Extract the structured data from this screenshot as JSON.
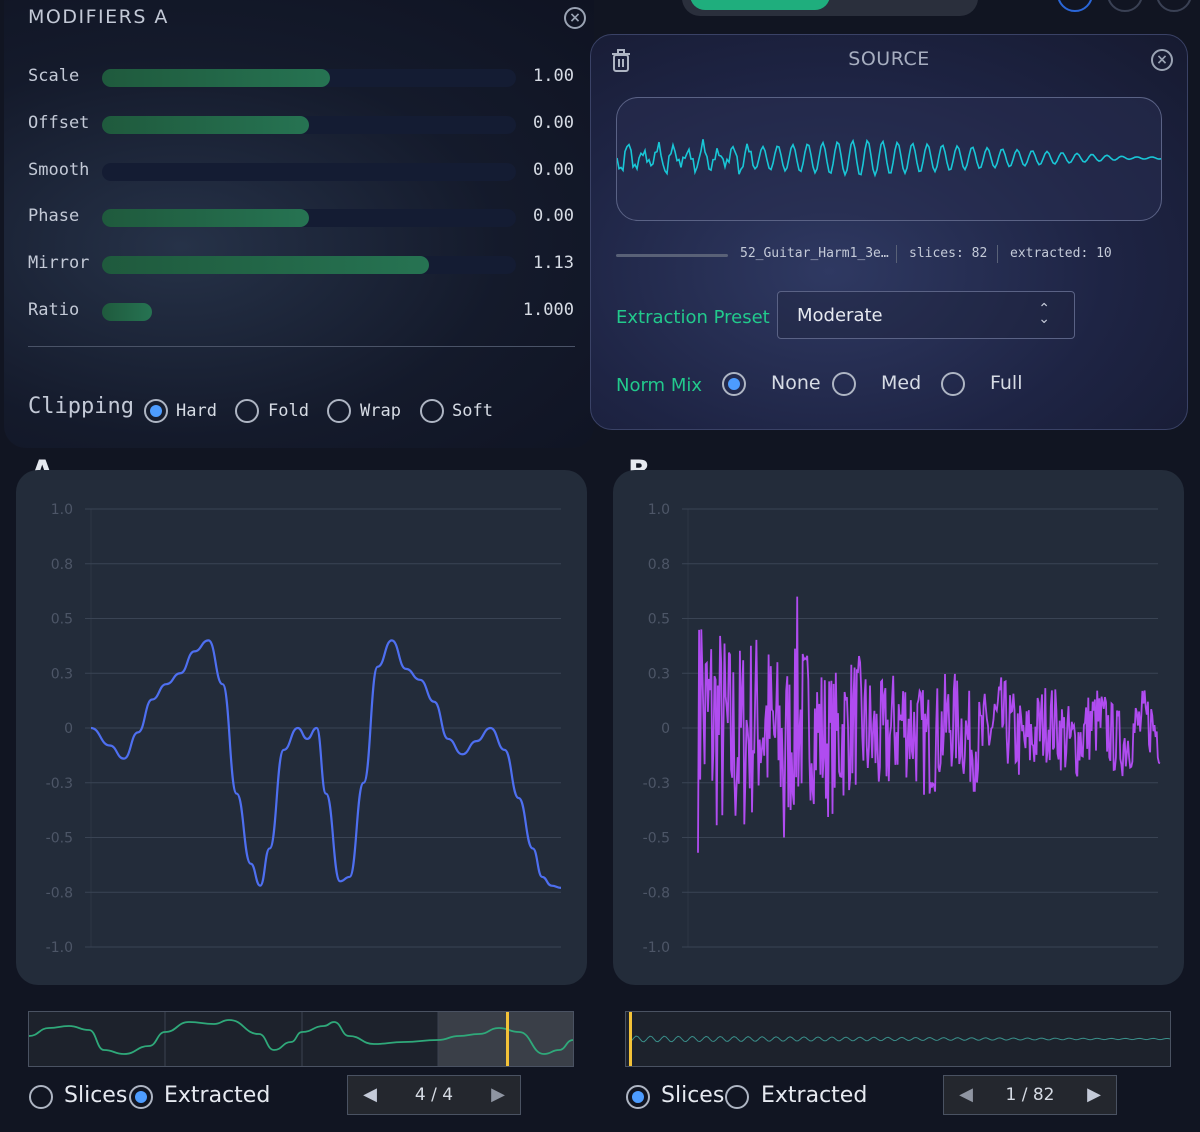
{
  "modifiers": {
    "title": "MODIFIERS A",
    "close_icon": "close-circle-icon",
    "rows": [
      {
        "label": "Scale",
        "value": "1.00",
        "fill": 0.55
      },
      {
        "label": "Offset",
        "value": "0.00",
        "fill": 0.5
      },
      {
        "label": "Smooth",
        "value": "0.00",
        "fill": 0.0
      },
      {
        "label": "Phase",
        "value": "0.00",
        "fill": 0.5
      },
      {
        "label": "Mirror",
        "value": "1.13",
        "fill": 0.79
      },
      {
        "label": "Ratio",
        "value": "1.000",
        "fill": 0.12
      }
    ],
    "clipping": {
      "label": "Clipping",
      "options": [
        "Hard",
        "Fold",
        "Wrap",
        "Soft"
      ],
      "selected": "Hard"
    }
  },
  "source": {
    "title": "SOURCE",
    "file_name": "52_Guitar_Harm1_3e…",
    "slices": "slices: 82",
    "extracted": "extracted: 10",
    "extraction_preset_label": "Extraction Preset",
    "extraction_preset_value": "Moderate",
    "norm_mix_label": "Norm Mix",
    "norm_mix_options": [
      "None",
      "Med",
      "Full"
    ],
    "norm_mix_selected": 0,
    "wave_color": "#19c6d6"
  },
  "graph_a": {
    "label": "A",
    "color": "#4e6ff0",
    "view_options": [
      "Slices",
      "Extracted"
    ],
    "view_selected": "Extracted",
    "pager": "4 / 4"
  },
  "graph_b": {
    "label": "B",
    "color": "#b04cf0",
    "view_options": [
      "Slices",
      "Extracted"
    ],
    "view_selected": "Slices",
    "pager": "1 / 82"
  },
  "chart_data": [
    {
      "type": "line",
      "title": "A",
      "ylim": [
        -1.0,
        1.0
      ],
      "yticks": [
        "1.0",
        "0.8",
        "0.5",
        "0.3",
        "0",
        "-0.3",
        "-0.5",
        "-0.8",
        "-1.0"
      ],
      "series": [
        {
          "name": "A",
          "x": [
            0,
            0.04,
            0.07,
            0.1,
            0.13,
            0.16,
            0.19,
            0.22,
            0.25,
            0.28,
            0.31,
            0.34,
            0.36,
            0.38,
            0.41,
            0.44,
            0.46,
            0.48,
            0.5,
            0.53,
            0.55,
            0.58,
            0.61,
            0.64,
            0.67,
            0.7,
            0.73,
            0.76,
            0.79,
            0.82,
            0.85,
            0.88,
            0.91,
            0.94,
            0.96,
            0.98,
            1.0
          ],
          "values": [
            0.0,
            -0.08,
            -0.14,
            -0.02,
            0.13,
            0.2,
            0.25,
            0.35,
            0.4,
            0.2,
            -0.3,
            -0.62,
            -0.72,
            -0.55,
            -0.1,
            0.0,
            -0.05,
            0.0,
            -0.3,
            -0.7,
            -0.68,
            -0.25,
            0.28,
            0.4,
            0.27,
            0.22,
            0.12,
            -0.05,
            -0.12,
            -0.06,
            0.0,
            -0.1,
            -0.32,
            -0.55,
            -0.68,
            -0.72,
            -0.73
          ]
        }
      ]
    },
    {
      "type": "line",
      "title": "B",
      "ylim": [
        -1.0,
        1.0
      ],
      "yticks": [
        "1.0",
        "0.8",
        "0.5",
        "0.3",
        "0",
        "-0.3",
        "-0.5",
        "-0.8",
        "-1.0"
      ],
      "series": [
        {
          "name": "B",
          "note": "noisy decaying guitar slice, peak ~0.6 near x=0.15"
        }
      ]
    }
  ]
}
